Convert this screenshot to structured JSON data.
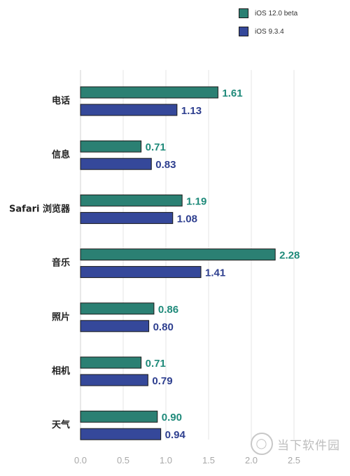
{
  "chart_data": {
    "type": "bar",
    "orientation": "horizontal",
    "categories": [
      "电话",
      "信息",
      "Safari 浏览器",
      "音乐",
      "照片",
      "相机",
      "天气"
    ],
    "series": [
      {
        "name": "iOS 12.0 beta",
        "color": "#2b8073",
        "label_color": "#1f8a7a",
        "values": [
          1.61,
          0.71,
          1.19,
          2.28,
          0.86,
          0.71,
          0.9
        ],
        "labels": [
          "1.61",
          "0.71",
          "1.19",
          "2.28",
          "0.86",
          "0.71",
          "0.90"
        ]
      },
      {
        "name": "iOS 9.3.4",
        "color": "#35489a",
        "label_color": "#2e3f8f",
        "values": [
          1.13,
          0.83,
          1.08,
          1.41,
          0.8,
          0.79,
          0.94
        ],
        "labels": [
          "1.13",
          "0.83",
          "1.08",
          "1.41",
          "0.80",
          "0.79",
          "0.94"
        ]
      }
    ],
    "xlim": [
      0,
      2.5
    ],
    "xticks": [
      "0.0",
      "0.5",
      "1.0",
      "1.5",
      "2.0",
      "2.5"
    ],
    "grid": "vertical",
    "legend_position": "top-right"
  },
  "legend": {
    "items": [
      {
        "label": "iOS 12.0 beta",
        "color": "#2b8073"
      },
      {
        "label": "iOS 9.3.4",
        "color": "#35489a"
      }
    ]
  },
  "watermark": {
    "text": "当下软件园",
    "icon": "logo-circle-icon"
  }
}
